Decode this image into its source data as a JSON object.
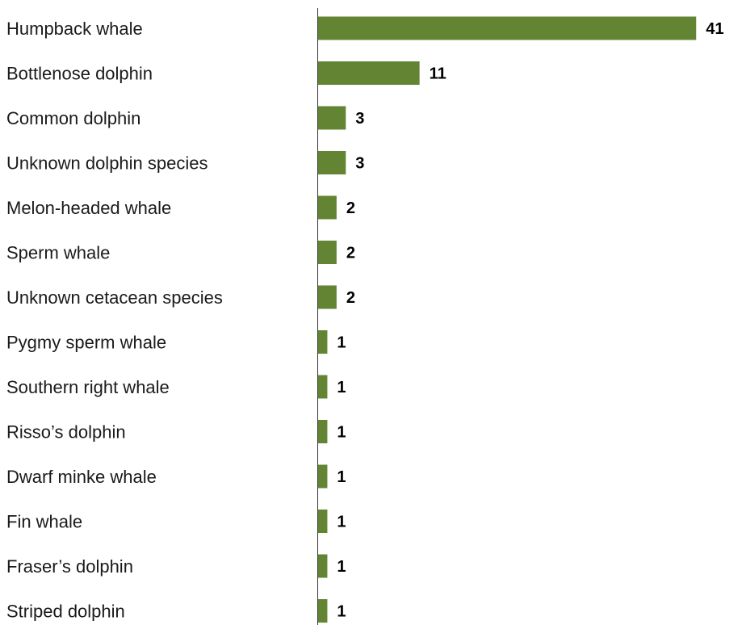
{
  "chart_data": {
    "type": "bar",
    "orientation": "horizontal",
    "title": "",
    "xlabel": "",
    "ylabel": "",
    "grid": false,
    "legend": "none",
    "bar_color": "#628433",
    "xlim": [
      0,
      41
    ],
    "categories": [
      "Humpback whale",
      "Bottlenose dolphin",
      "Common dolphin",
      "Unknown dolphin species",
      "Melon-headed whale",
      "Sperm whale",
      "Unknown cetacean species",
      "Pygmy sperm whale",
      "Southern right whale",
      "Risso’s dolphin",
      "Dwarf minke whale",
      "Fin whale",
      "Fraser’s dolphin",
      "Striped dolphin"
    ],
    "values": [
      41,
      11,
      3,
      3,
      2,
      2,
      2,
      1,
      1,
      1,
      1,
      1,
      1,
      1
    ],
    "data_labels": [
      "41",
      "11",
      "3",
      "3",
      "2",
      "2",
      "2",
      "1",
      "1",
      "1",
      "1",
      "1",
      "1",
      "1"
    ]
  }
}
